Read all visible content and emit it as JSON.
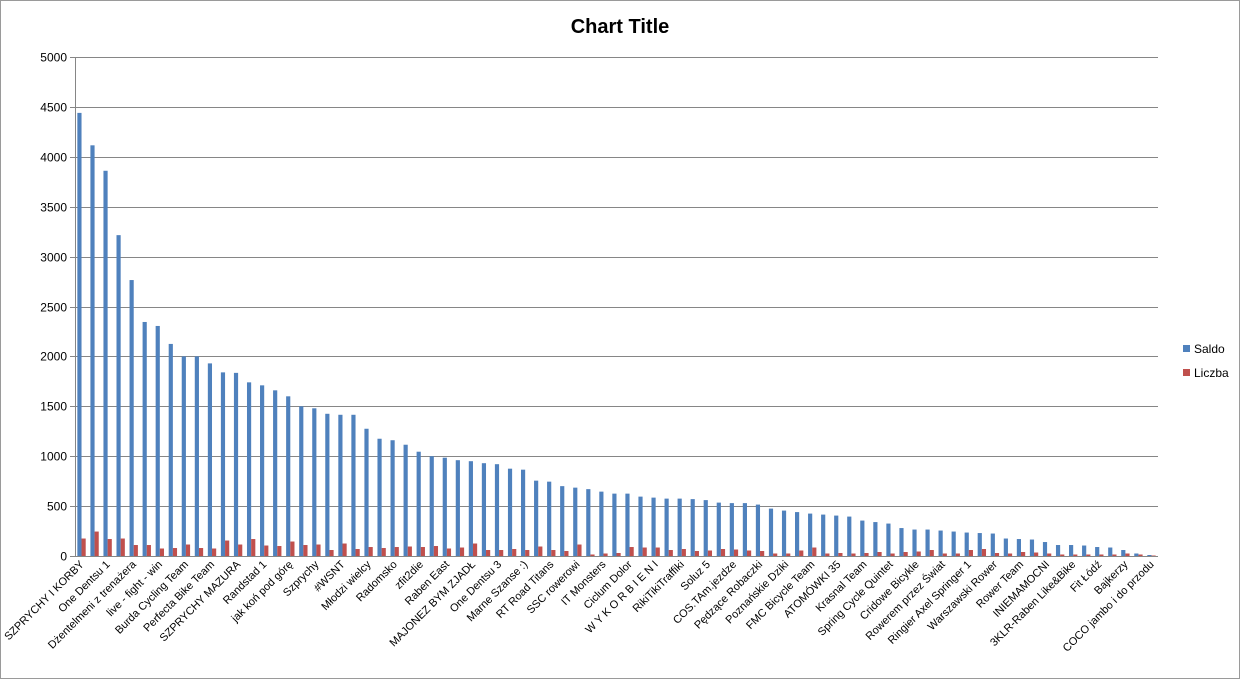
{
  "chart_data": {
    "type": "bar",
    "title": "Chart Title",
    "xlabel": "",
    "ylabel": "",
    "ylim": [
      0,
      5000
    ],
    "yticks": [
      0,
      500,
      1000,
      1500,
      2000,
      2500,
      3000,
      3500,
      4000,
      4500,
      5000
    ],
    "grid": true,
    "legend_position": "right",
    "categories": [
      "SZPRYCHY I KORBY",
      "",
      "One Dentsu 1",
      "",
      "Dżentelmeni z trenażera",
      "",
      "live - fight - win",
      "",
      "Burda Cycling Team",
      "",
      "Perfecta Bike Team",
      "",
      "SZPRYCHY MAZURA",
      "",
      "Randstad 1",
      "",
      "jak koń pod górę",
      "",
      "Szprychy",
      "",
      "#WSNT",
      "",
      "Młodzi wielcy",
      "",
      "Radomsko",
      "",
      "zfit2die",
      "",
      "Raben East",
      "",
      "MAJONEZ BYM ZJADŁ",
      "",
      "One Dentsu 3",
      "",
      "Marne Szanse :)",
      "",
      "RT Road Titans",
      "",
      "SSC rowerowi",
      "",
      "IT Monsters",
      "",
      "Ciclum Dolor",
      "",
      "W Y K O R B I E N I",
      "",
      "RikiTikiTraffiki",
      "",
      "Soluz 5",
      "",
      "COS.TAm.jezdze",
      "",
      "Pędzące Robaczki",
      "",
      "Poznańskie Dziki",
      "",
      "FMC Bicycle Team",
      "",
      "ATOMÓWKI 35",
      "",
      "Krasnal Team",
      "",
      "Spring Cycle Quintet",
      "",
      "Cridowe Bicykle",
      "",
      "Rowerem przez Świat",
      "",
      "Ringier Axel Springer 1",
      "",
      "Warszawski Rower",
      "",
      "Rower Team",
      "",
      "INIEMAMOCNI",
      "",
      "3KLR-Raben Like&Bike",
      "",
      "Fit Łódź",
      "",
      "Bajkerzy",
      "",
      "COCO jambo i do przodu"
    ],
    "series": [
      {
        "name": "Saldo",
        "color": "#4f81bd",
        "values": [
          4440,
          4115,
          3860,
          3215,
          2765,
          2345,
          2305,
          2125,
          2000,
          2000,
          1930,
          1840,
          1835,
          1740,
          1710,
          1660,
          1600,
          1500,
          1480,
          1425,
          1415,
          1415,
          1275,
          1175,
          1160,
          1115,
          1045,
          1000,
          985,
          960,
          950,
          930,
          920,
          875,
          865,
          755,
          745,
          700,
          685,
          670,
          645,
          625,
          625,
          595,
          585,
          575,
          575,
          570,
          560,
          535,
          530,
          530,
          515,
          475,
          455,
          440,
          425,
          415,
          405,
          395,
          355,
          340,
          325,
          280,
          265,
          265,
          255,
          245,
          235,
          230,
          225,
          175,
          170,
          165,
          140,
          110,
          110,
          105,
          90,
          85,
          60,
          25,
          10
        ]
      },
      {
        "name": "Liczba",
        "color": "#c0504d",
        "values": [
          175,
          245,
          170,
          175,
          110,
          110,
          75,
          80,
          115,
          80,
          75,
          155,
          115,
          170,
          105,
          100,
          145,
          110,
          115,
          60,
          125,
          70,
          90,
          80,
          90,
          95,
          90,
          100,
          75,
          85,
          125,
          60,
          60,
          70,
          60,
          95,
          60,
          50,
          115,
          15,
          25,
          30,
          90,
          85,
          85,
          60,
          70,
          50,
          55,
          70,
          65,
          55,
          50,
          25,
          25,
          55,
          85,
          25,
          30,
          25,
          30,
          40,
          25,
          40,
          45,
          60,
          25,
          25,
          60,
          70,
          30,
          25,
          40,
          35,
          25,
          15,
          15,
          15,
          15,
          15,
          25,
          15,
          5
        ]
      }
    ]
  }
}
